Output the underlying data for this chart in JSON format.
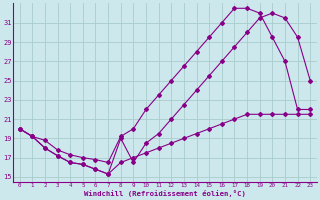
{
  "xlabel": "Windchill (Refroidissement éolien,°C)",
  "bg_color": "#cce8ec",
  "grid_color": "#aacccc",
  "line_color": "#880088",
  "xlim": [
    -0.5,
    23.5
  ],
  "ylim": [
    14.5,
    33.0
  ],
  "yticks": [
    15,
    17,
    19,
    21,
    23,
    25,
    27,
    29,
    31
  ],
  "xticks": [
    0,
    1,
    2,
    3,
    4,
    5,
    6,
    7,
    8,
    9,
    10,
    11,
    12,
    13,
    14,
    15,
    16,
    17,
    18,
    19,
    20,
    21,
    22,
    23
  ],
  "curve_top_x": [
    0,
    1,
    2,
    3,
    4,
    5,
    6,
    7,
    8,
    9,
    10,
    11,
    12,
    13,
    14,
    15,
    16,
    17,
    18,
    19,
    20,
    21,
    22,
    23
  ],
  "curve_top_y": [
    20.0,
    19.2,
    18.8,
    17.8,
    17.3,
    17.0,
    16.8,
    16.5,
    19.2,
    20.0,
    22.0,
    23.5,
    25.0,
    26.5,
    28.0,
    29.5,
    31.0,
    32.5,
    32.5,
    32.0,
    29.5,
    27.0,
    22.0,
    22.0
  ],
  "curve_mid_x": [
    0,
    1,
    2,
    3,
    4,
    5,
    6,
    7,
    8,
    9,
    10,
    11,
    12,
    13,
    14,
    15,
    16,
    17,
    18,
    19,
    20,
    21,
    22,
    23
  ],
  "curve_mid_y": [
    20.0,
    19.2,
    18.0,
    17.2,
    16.5,
    16.3,
    15.8,
    15.3,
    19.0,
    16.5,
    18.5,
    19.5,
    21.0,
    22.5,
    24.0,
    25.5,
    27.0,
    28.5,
    30.0,
    31.5,
    32.0,
    31.5,
    29.5,
    25.0
  ],
  "curve_bot_x": [
    0,
    1,
    2,
    3,
    4,
    5,
    6,
    7,
    8,
    9,
    10,
    11,
    12,
    13,
    14,
    15,
    16,
    17,
    18,
    19,
    20,
    21,
    22,
    23
  ],
  "curve_bot_y": [
    20.0,
    19.2,
    18.0,
    17.2,
    16.5,
    16.3,
    15.8,
    15.3,
    16.5,
    17.0,
    17.5,
    18.0,
    18.5,
    19.0,
    19.5,
    20.0,
    20.5,
    21.0,
    21.5,
    21.5,
    21.5,
    21.5,
    21.5,
    21.5
  ]
}
